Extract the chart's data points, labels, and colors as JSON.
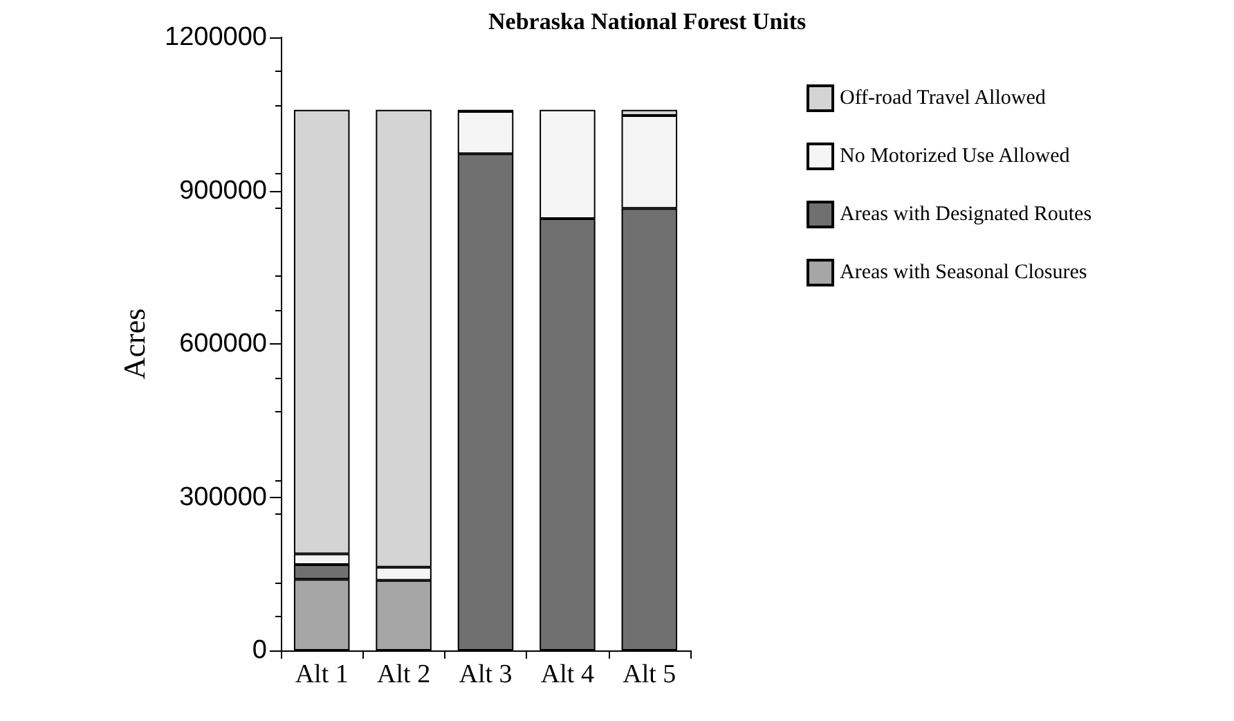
{
  "chart_data": {
    "type": "bar",
    "title": "Nebraska National Forest Units",
    "ylabel": "Acres",
    "categories": [
      "Alt 1",
      "Alt 2",
      "Alt 3",
      "Alt 4",
      "Alt 5"
    ],
    "stacked": true,
    "ylim": [
      0,
      1200000
    ],
    "yticks": [
      0,
      300000,
      600000,
      900000,
      1200000
    ],
    "grid": false,
    "legend": "right",
    "series": [
      {
        "name": "Areas with Seasonal Closures",
        "color": "#a6a6a6",
        "values": [
          139000,
          137000,
          null,
          null,
          null
        ]
      },
      {
        "name": "Areas with Designated Routes",
        "color": "#707070",
        "values": [
          29000,
          null,
          972000,
          845000,
          865000
        ]
      },
      {
        "name": "No Motorized Use Allowed",
        "color": "#f5f5f5",
        "values": [
          21000,
          26000,
          83000,
          213000,
          182000
        ]
      },
      {
        "name": "Off-road Travel Allowed",
        "color": "#d4d4d4",
        "values": [
          869000,
          895000,
          3000,
          null,
          11000
        ]
      }
    ]
  }
}
